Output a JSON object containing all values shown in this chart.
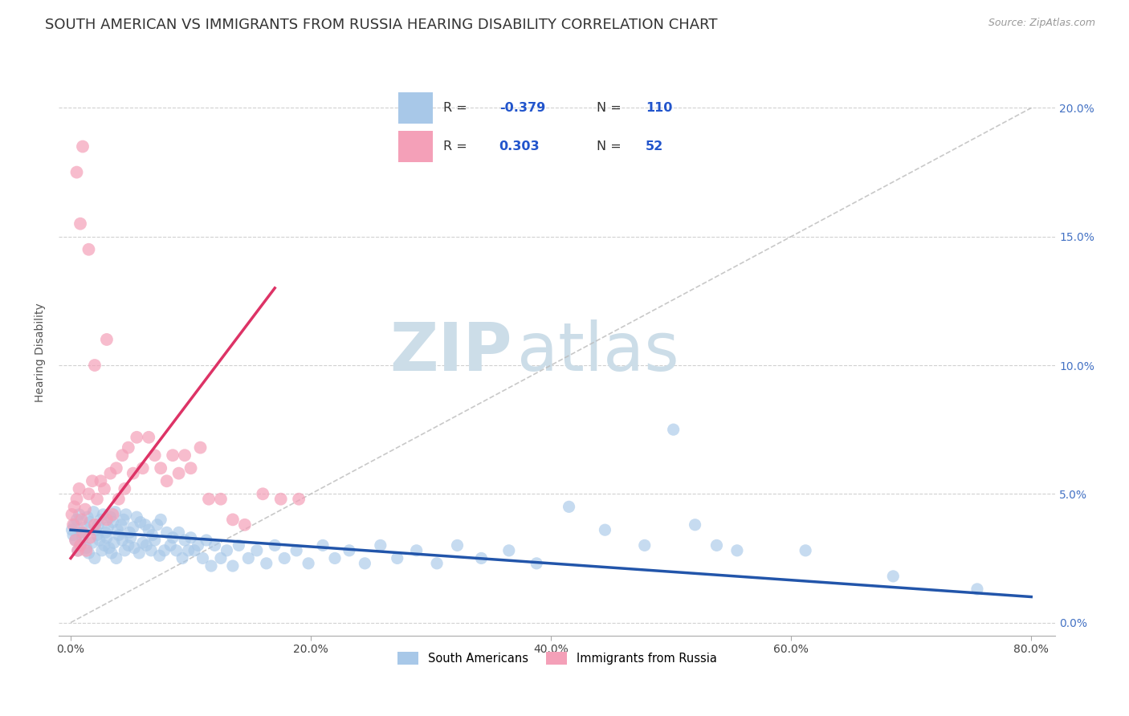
{
  "title": "SOUTH AMERICAN VS IMMIGRANTS FROM RUSSIA HEARING DISABILITY CORRELATION CHART",
  "source": "Source: ZipAtlas.com",
  "ylabel": "Hearing Disability",
  "blue_R": -0.379,
  "blue_N": 110,
  "pink_R": 0.303,
  "pink_N": 52,
  "blue_color": "#a8c8e8",
  "pink_color": "#f4a0b8",
  "blue_line_color": "#2255aa",
  "pink_line_color": "#dd3366",
  "diag_line_color": "#bbbbbb",
  "watermark_zip": "ZIP",
  "watermark_atlas": "atlas",
  "watermark_color": "#ccdde8",
  "xlim": [
    -0.01,
    0.82
  ],
  "ylim": [
    -0.005,
    0.215
  ],
  "xticks": [
    0.0,
    0.2,
    0.4,
    0.6,
    0.8
  ],
  "yticks": [
    0.0,
    0.05,
    0.1,
    0.15,
    0.2
  ],
  "title_fontsize": 13,
  "axis_label_fontsize": 10,
  "tick_fontsize": 10,
  "background_color": "#ffffff",
  "seed": 42,
  "blue_x": [
    0.001,
    0.002,
    0.003,
    0.004,
    0.005,
    0.006,
    0.007,
    0.008,
    0.009,
    0.01,
    0.012,
    0.013,
    0.014,
    0.015,
    0.016,
    0.018,
    0.019,
    0.02,
    0.021,
    0.022,
    0.023,
    0.024,
    0.025,
    0.026,
    0.027,
    0.028,
    0.029,
    0.03,
    0.031,
    0.032,
    0.033,
    0.034,
    0.035,
    0.036,
    0.037,
    0.038,
    0.039,
    0.04,
    0.042,
    0.043,
    0.044,
    0.045,
    0.046,
    0.048,
    0.049,
    0.05,
    0.052,
    0.053,
    0.055,
    0.057,
    0.058,
    0.06,
    0.062,
    0.063,
    0.065,
    0.067,
    0.068,
    0.07,
    0.072,
    0.074,
    0.075,
    0.078,
    0.08,
    0.083,
    0.085,
    0.088,
    0.09,
    0.093,
    0.095,
    0.098,
    0.1,
    0.103,
    0.106,
    0.11,
    0.113,
    0.117,
    0.12,
    0.125,
    0.13,
    0.135,
    0.14,
    0.148,
    0.155,
    0.163,
    0.17,
    0.178,
    0.188,
    0.198,
    0.21,
    0.22,
    0.232,
    0.245,
    0.258,
    0.272,
    0.288,
    0.305,
    0.322,
    0.342,
    0.365,
    0.388,
    0.415,
    0.445,
    0.478,
    0.502,
    0.52,
    0.538,
    0.555,
    0.612,
    0.685,
    0.755
  ],
  "blue_y": [
    0.036,
    0.034,
    0.038,
    0.032,
    0.04,
    0.028,
    0.042,
    0.03,
    0.035,
    0.033,
    0.037,
    0.029,
    0.041,
    0.027,
    0.039,
    0.031,
    0.043,
    0.025,
    0.036,
    0.034,
    0.038,
    0.032,
    0.04,
    0.028,
    0.042,
    0.03,
    0.035,
    0.033,
    0.037,
    0.029,
    0.041,
    0.027,
    0.039,
    0.031,
    0.043,
    0.025,
    0.036,
    0.034,
    0.038,
    0.032,
    0.04,
    0.028,
    0.042,
    0.03,
    0.035,
    0.033,
    0.037,
    0.029,
    0.041,
    0.027,
    0.039,
    0.031,
    0.038,
    0.03,
    0.036,
    0.028,
    0.034,
    0.032,
    0.038,
    0.026,
    0.04,
    0.028,
    0.035,
    0.03,
    0.033,
    0.028,
    0.035,
    0.025,
    0.032,
    0.028,
    0.033,
    0.028,
    0.03,
    0.025,
    0.032,
    0.022,
    0.03,
    0.025,
    0.028,
    0.022,
    0.03,
    0.025,
    0.028,
    0.023,
    0.03,
    0.025,
    0.028,
    0.023,
    0.03,
    0.025,
    0.028,
    0.023,
    0.03,
    0.025,
    0.028,
    0.023,
    0.03,
    0.025,
    0.028,
    0.023,
    0.045,
    0.036,
    0.03,
    0.075,
    0.038,
    0.03,
    0.028,
    0.028,
    0.018,
    0.013
  ],
  "pink_x": [
    0.001,
    0.002,
    0.003,
    0.004,
    0.005,
    0.006,
    0.007,
    0.008,
    0.009,
    0.01,
    0.012,
    0.013,
    0.015,
    0.016,
    0.018,
    0.02,
    0.022,
    0.025,
    0.028,
    0.03,
    0.033,
    0.035,
    0.038,
    0.04,
    0.043,
    0.045,
    0.048,
    0.052,
    0.055,
    0.06,
    0.065,
    0.07,
    0.075,
    0.08,
    0.085,
    0.09,
    0.095,
    0.1,
    0.108,
    0.115,
    0.125,
    0.135,
    0.145,
    0.16,
    0.175,
    0.19,
    0.005,
    0.008,
    0.01,
    0.015,
    0.02,
    0.03
  ],
  "pink_y": [
    0.042,
    0.038,
    0.045,
    0.032,
    0.048,
    0.028,
    0.052,
    0.03,
    0.04,
    0.035,
    0.044,
    0.028,
    0.05,
    0.033,
    0.055,
    0.038,
    0.048,
    0.055,
    0.052,
    0.04,
    0.058,
    0.042,
    0.06,
    0.048,
    0.065,
    0.052,
    0.068,
    0.058,
    0.072,
    0.06,
    0.072,
    0.065,
    0.06,
    0.055,
    0.065,
    0.058,
    0.065,
    0.06,
    0.068,
    0.048,
    0.048,
    0.04,
    0.038,
    0.05,
    0.048,
    0.048,
    0.175,
    0.155,
    0.185,
    0.145,
    0.1,
    0.11
  ]
}
